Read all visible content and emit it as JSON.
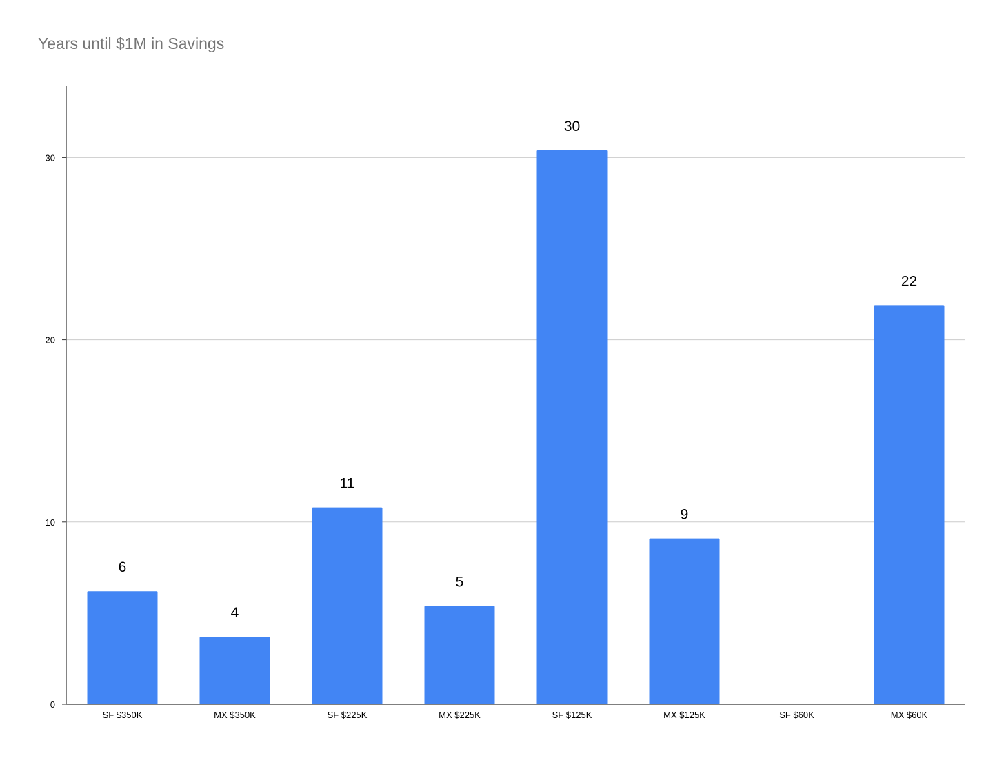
{
  "chart_data": {
    "type": "bar",
    "title": "Years until $1M in Savings",
    "xlabel": "",
    "ylabel": "",
    "categories": [
      "SF $350K",
      "MX $350K",
      "SF $225K",
      "MX $225K",
      "SF $125K",
      "MX $125K",
      "SF $60K",
      "MX $60K"
    ],
    "values": [
      6.2,
      3.7,
      10.8,
      5.4,
      30.4,
      9.1,
      0,
      21.9
    ],
    "data_labels": [
      "6",
      "4",
      "11",
      "5",
      "30",
      "9",
      "",
      "22"
    ],
    "ylim": [
      0,
      34
    ],
    "yticks": [
      0,
      10,
      20,
      30
    ],
    "ytick_labels": [
      "0",
      "10",
      "20",
      "30"
    ],
    "grid": true,
    "legend": "none",
    "colors": {
      "bar": "#4285f4",
      "grid": "#cccccc",
      "axis": "#333333",
      "title": "#757575"
    }
  }
}
